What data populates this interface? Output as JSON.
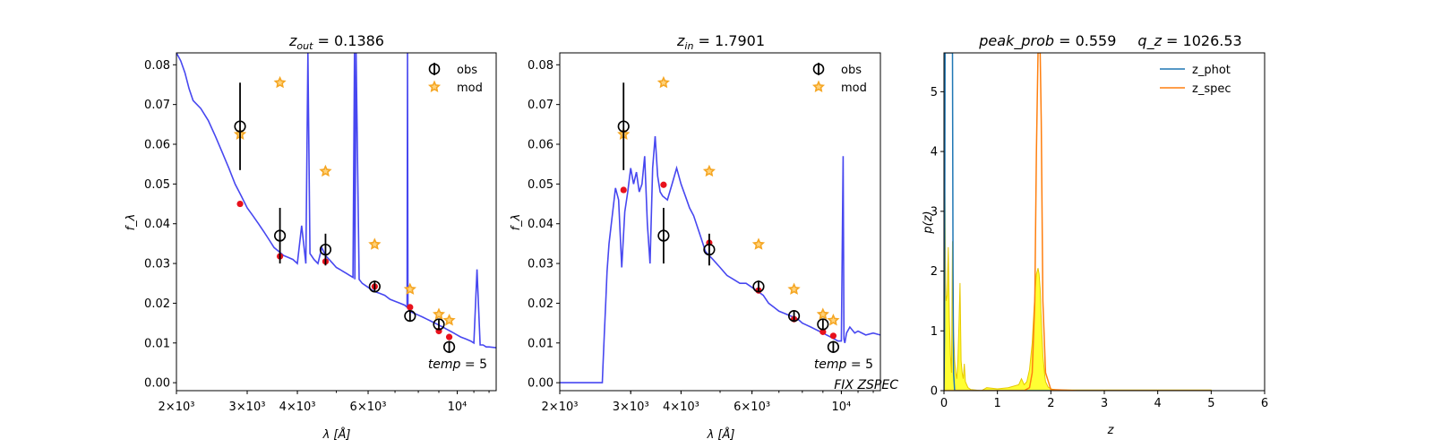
{
  "chart_data": [
    {
      "type": "scatter",
      "title": "z_out = 0.1386",
      "xlabel": "λ [Å]",
      "ylabel": "f_λ",
      "xscale": "log",
      "xlim": [
        2000,
        12500
      ],
      "ylim": [
        -0.002,
        0.083
      ],
      "xticks": [
        {
          "v": 2000,
          "label": "2×10³"
        },
        {
          "v": 3000,
          "label": "3×10³"
        },
        {
          "v": 4000,
          "label": "4×10³"
        },
        {
          "v": 6000,
          "label": "6×10³"
        },
        {
          "v": 10000,
          "label": "10⁴"
        }
      ],
      "yticks": [
        "0.00",
        "0.01",
        "0.02",
        "0.03",
        "0.04",
        "0.05",
        "0.06",
        "0.07",
        "0.08"
      ],
      "legend": {
        "position": "top-right",
        "obs_label": "obs",
        "mod_label": "mod"
      },
      "annotations": [
        "temp = 5"
      ],
      "series": [
        {
          "name": "obs",
          "x": [
            2880,
            3620,
            4700,
            6230,
            7630,
            9000,
            9550
          ],
          "y": [
            0.0645,
            0.037,
            0.0335,
            0.0242,
            0.0168,
            0.0147,
            0.009
          ],
          "yerr": [
            0.011,
            0.007,
            0.004,
            0.0015,
            0.0012,
            0.0012,
            0.0015
          ]
        },
        {
          "name": "mod",
          "x": [
            2880,
            3620,
            4700,
            6230,
            7630,
            9000,
            9550
          ],
          "y": [
            0.0625,
            0.0755,
            0.0532,
            0.0348,
            0.0235,
            0.0172,
            0.0157
          ]
        },
        {
          "name": "synthetic",
          "x": [
            2880,
            3620,
            4700,
            6230,
            7630,
            9000,
            9550
          ],
          "y": [
            0.045,
            0.0318,
            0.0305,
            0.0242,
            0.019,
            0.013,
            0.0115
          ]
        },
        {
          "name": "template",
          "x": [
            2000,
            2050,
            2100,
            2150,
            2200,
            2300,
            2400,
            2500,
            2600,
            2700,
            2800,
            2900,
            3000,
            3100,
            3200,
            3300,
            3400,
            3500,
            3600,
            3700,
            3800,
            3900,
            4000,
            4100,
            4200,
            4250,
            4300,
            4400,
            4500,
            4600,
            4700,
            4800,
            4900,
            5000,
            5100,
            5200,
            5300,
            5400,
            5500,
            5550,
            5560,
            5600,
            5700,
            5800,
            6000,
            6200,
            6400,
            6600,
            6800,
            7000,
            7200,
            7400,
            7500,
            7520,
            7540,
            7600,
            7800,
            8000,
            8200,
            8400,
            8600,
            8800,
            9000,
            9200,
            9400,
            9600,
            9800,
            10000,
            10200,
            10500,
            10800,
            11000,
            11200,
            11400,
            11600,
            11800,
            12000,
            12500
          ],
          "y": [
            0.083,
            0.081,
            0.078,
            0.074,
            0.071,
            0.069,
            0.066,
            0.062,
            0.058,
            0.054,
            0.05,
            0.047,
            0.044,
            0.042,
            0.04,
            0.038,
            0.036,
            0.034,
            0.033,
            0.032,
            0.0315,
            0.031,
            0.03,
            0.0395,
            0.03,
            0.083,
            0.0325,
            0.031,
            0.03,
            0.034,
            0.032,
            0.031,
            0.03,
            0.029,
            0.0285,
            0.028,
            0.0275,
            0.027,
            0.0265,
            0.083,
            0.026,
            0.083,
            0.026,
            0.025,
            0.024,
            0.023,
            0.0225,
            0.022,
            0.021,
            0.0205,
            0.02,
            0.0195,
            0.019,
            0.083,
            0.019,
            0.018,
            0.0175,
            0.017,
            0.0165,
            0.016,
            0.0155,
            0.015,
            0.0145,
            0.014,
            0.0135,
            0.013,
            0.0125,
            0.012,
            0.0115,
            0.011,
            0.0105,
            0.01,
            0.0285,
            0.0095,
            0.0095,
            0.009,
            0.009,
            0.0088
          ]
        }
      ]
    },
    {
      "type": "scatter",
      "title": "z_in = 1.7901",
      "xlabel": "λ [Å]",
      "ylabel": "f_λ",
      "xscale": "log",
      "xlim": [
        2000,
        12500
      ],
      "ylim": [
        -0.002,
        0.083
      ],
      "xticks": [
        {
          "v": 2000,
          "label": "2×10³"
        },
        {
          "v": 3000,
          "label": "3×10³"
        },
        {
          "v": 4000,
          "label": "4×10³"
        },
        {
          "v": 6000,
          "label": "6×10³"
        },
        {
          "v": 10000,
          "label": "10⁴"
        }
      ],
      "yticks": [
        "0.00",
        "0.01",
        "0.02",
        "0.03",
        "0.04",
        "0.05",
        "0.06",
        "0.07",
        "0.08"
      ],
      "legend": {
        "position": "top-right",
        "obs_label": "obs",
        "mod_label": "mod"
      },
      "annotations": [
        "temp = 5",
        "FIX ZSPEC"
      ],
      "series": [
        {
          "name": "obs",
          "x": [
            2880,
            3620,
            4700,
            6230,
            7630,
            9000,
            9550
          ],
          "y": [
            0.0645,
            0.037,
            0.0335,
            0.0242,
            0.0168,
            0.0147,
            0.009
          ],
          "yerr": [
            0.011,
            0.007,
            0.004,
            0.0015,
            0.0012,
            0.0012,
            0.0015
          ]
        },
        {
          "name": "mod",
          "x": [
            2880,
            3620,
            4700,
            6230,
            7630,
            9000,
            9550
          ],
          "y": [
            0.0625,
            0.0755,
            0.0532,
            0.0348,
            0.0235,
            0.0172,
            0.0157
          ]
        },
        {
          "name": "synthetic",
          "x": [
            2880,
            3620,
            4700,
            6230,
            7630,
            9000,
            9550
          ],
          "y": [
            0.0485,
            0.0498,
            0.0352,
            0.0232,
            0.016,
            0.0128,
            0.0118
          ]
        },
        {
          "name": "template",
          "x": [
            2000,
            2550,
            2560,
            2580,
            2600,
            2620,
            2650,
            2700,
            2750,
            2800,
            2850,
            2900,
            2950,
            3000,
            3050,
            3100,
            3150,
            3200,
            3250,
            3300,
            3350,
            3400,
            3450,
            3500,
            3550,
            3600,
            3700,
            3800,
            3900,
            4000,
            4100,
            4200,
            4300,
            4400,
            4500,
            4600,
            4800,
            5000,
            5200,
            5400,
            5600,
            5800,
            6000,
            6200,
            6400,
            6600,
            6800,
            7000,
            7200,
            7400,
            7600,
            7800,
            8000,
            8200,
            8400,
            8600,
            8800,
            9000,
            9200,
            9400,
            9600,
            9800,
            10000,
            10100,
            10150,
            10200,
            10300,
            10500,
            10800,
            11000,
            11500,
            12000,
            12500
          ],
          "y": [
            0.0,
            0.0,
            0.004,
            0.012,
            0.02,
            0.028,
            0.035,
            0.042,
            0.049,
            0.046,
            0.029,
            0.043,
            0.048,
            0.054,
            0.05,
            0.053,
            0.048,
            0.05,
            0.057,
            0.04,
            0.03,
            0.054,
            0.062,
            0.052,
            0.048,
            0.047,
            0.046,
            0.05,
            0.054,
            0.05,
            0.047,
            0.044,
            0.042,
            0.039,
            0.036,
            0.033,
            0.031,
            0.029,
            0.027,
            0.026,
            0.025,
            0.025,
            0.024,
            0.023,
            0.022,
            0.02,
            0.019,
            0.018,
            0.0175,
            0.017,
            0.0165,
            0.016,
            0.015,
            0.0145,
            0.014,
            0.0135,
            0.013,
            0.0125,
            0.012,
            0.0115,
            0.011,
            0.0105,
            0.0105,
            0.057,
            0.011,
            0.01,
            0.0125,
            0.014,
            0.0125,
            0.013,
            0.012,
            0.0125,
            0.012
          ]
        }
      ]
    },
    {
      "type": "line",
      "title": "peak_prob = 0.559      q_z = 1026.53",
      "xlabel": "z",
      "ylabel": "p(z)",
      "xlim": [
        0,
        6
      ],
      "ylim": [
        0,
        5.65
      ],
      "xticks": [
        "0",
        "1",
        "2",
        "3",
        "4",
        "5",
        "6"
      ],
      "yticks": [
        "0",
        "1",
        "2",
        "3",
        "4",
        "5"
      ],
      "legend": {
        "position": "top-right"
      },
      "series": [
        {
          "name": "z_phot",
          "color": "#1f77b4",
          "x": [
            0.0,
            0.01,
            0.02,
            0.03,
            0.04,
            0.05,
            0.06,
            0.07,
            0.08,
            0.09,
            0.1,
            0.11,
            0.12,
            0.13,
            0.135,
            0.14,
            0.145,
            0.15,
            0.16,
            0.17,
            0.18,
            0.2,
            0.3,
            0.5,
            1.0,
            5.0
          ],
          "y": [
            0.0,
            0.9,
            5.65,
            5.65,
            5.65,
            5.65,
            5.65,
            5.65,
            5.65,
            5.65,
            5.65,
            5.65,
            5.65,
            5.65,
            5.65,
            5.65,
            5.65,
            5.65,
            5.65,
            2.0,
            0.3,
            0.0,
            0.0,
            0.0,
            0.0,
            0.0
          ]
        },
        {
          "name": "z_spec",
          "color": "#ff7f0e",
          "x": [
            0.0,
            0.5,
            1.0,
            1.5,
            1.6,
            1.65,
            1.7,
            1.73,
            1.76,
            1.78,
            1.79,
            1.8,
            1.82,
            1.85,
            1.9,
            2.0,
            2.5,
            5.0
          ],
          "y": [
            0.0,
            0.0,
            0.0,
            0.0,
            0.05,
            0.3,
            1.5,
            4.0,
            5.65,
            5.65,
            5.65,
            5.65,
            4.5,
            1.5,
            0.3,
            0.02,
            0.0,
            0.0
          ]
        },
        {
          "name": "p_z",
          "x": [
            0.0,
            0.01,
            0.02,
            0.03,
            0.04,
            0.06,
            0.08,
            0.1,
            0.12,
            0.14,
            0.16,
            0.18,
            0.2,
            0.22,
            0.24,
            0.26,
            0.28,
            0.3,
            0.32,
            0.34,
            0.36,
            0.38,
            0.4,
            0.45,
            0.5,
            0.7,
            0.8,
            1.0,
            1.2,
            1.4,
            1.45,
            1.5,
            1.55,
            1.6,
            1.65,
            1.7,
            1.73,
            1.76,
            1.78,
            1.8,
            1.82,
            1.85,
            1.88,
            1.9,
            1.95,
            2.0,
            2.1,
            2.5,
            3.0,
            4.0,
            5.0
          ],
          "y": [
            4.3,
            4.0,
            3.1,
            1.8,
            1.5,
            1.6,
            2.4,
            1.2,
            0.6,
            0.3,
            2.5,
            1.0,
            0.5,
            0.3,
            0.2,
            0.5,
            1.1,
            1.8,
            0.5,
            0.3,
            0.2,
            0.45,
            0.15,
            0.05,
            0.02,
            0.0,
            0.05,
            0.03,
            0.05,
            0.1,
            0.2,
            0.1,
            0.15,
            0.35,
            0.8,
            1.6,
            1.95,
            2.05,
            1.95,
            1.7,
            1.2,
            0.6,
            0.3,
            0.15,
            0.06,
            0.03,
            0.01,
            0.01,
            0.01,
            0.01,
            0.01
          ]
        }
      ]
    }
  ],
  "labels": {
    "p1_title_prefix": "z",
    "p1_title_sub": "out",
    "p1_title_value": " = 0.1386",
    "p2_title_prefix": "z",
    "p2_title_sub": "in",
    "p2_title_value": " = 1.7901",
    "p3_title_a": "peak_prob",
    "p3_title_a_val": " = 0.559",
    "p3_title_b": "q_z",
    "p3_title_b_val": " = 1026.53",
    "sed_xlabel": "λ [Å]",
    "sed_ylabel": "f_λ",
    "pz_xlabel": "z",
    "pz_ylabel": "p(z)",
    "temp_label": "temp",
    "temp_value": " = 5",
    "fix_label": "FIX ZSPEC"
  },
  "colors": {
    "template_line": "#3333ee",
    "obs_marker": "#000000",
    "mod_marker": "#f5a623",
    "synthetic_marker": "#e8111c",
    "z_phot": "#1f77b4",
    "z_spec": "#ff7f0e",
    "pz_fill": "#ffff33",
    "pz_edge": "#e6c800"
  }
}
